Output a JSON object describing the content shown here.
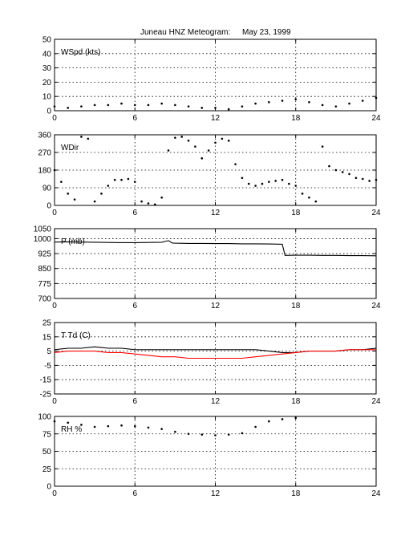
{
  "figure": {
    "title_station": "Juneau HNZ Meteogram:",
    "title_date": "May 23, 1999"
  },
  "chart_data": [
    {
      "type": "scatter",
      "label": "WSpd (kts)",
      "xlim": [
        0,
        24
      ],
      "ylim": [
        0,
        50
      ],
      "xticks": [
        0,
        6,
        12,
        18,
        24
      ],
      "yticks": [
        0,
        10,
        20,
        30,
        40,
        50
      ],
      "grid": true,
      "series": [
        {
          "color": "#000000",
          "x": [
            0,
            1,
            2,
            3,
            4,
            5,
            6,
            7,
            8,
            9,
            10,
            11,
            12,
            13,
            14,
            15,
            16,
            17,
            18,
            19,
            20,
            21,
            22,
            23,
            24
          ],
          "y": [
            3,
            2,
            3,
            4,
            4,
            5,
            4,
            4,
            5,
            4,
            3,
            2,
            2,
            1,
            3,
            5,
            6,
            7,
            8,
            6,
            4,
            3,
            5,
            7,
            9
          ]
        }
      ]
    },
    {
      "type": "scatter",
      "label": "WDir",
      "xlim": [
        0,
        24
      ],
      "ylim": [
        0,
        360
      ],
      "xticks": [
        0,
        6,
        12,
        18,
        24
      ],
      "yticks": [
        0,
        90,
        180,
        270,
        360
      ],
      "grid": true,
      "series": [
        {
          "color": "#000000",
          "x": [
            0,
            0.5,
            1,
            1.5,
            2,
            2.5,
            3,
            3.5,
            4,
            4.5,
            5,
            5.5,
            6,
            6.5,
            7,
            7.5,
            8,
            8.5,
            9,
            9.5,
            10,
            10.5,
            11,
            11.5,
            12,
            12.5,
            13,
            13.5,
            14,
            14.5,
            15,
            15.5,
            16,
            16.5,
            17,
            17.5,
            18,
            18.5,
            19,
            19.5,
            20,
            20.5,
            21,
            21.5,
            22,
            22.5,
            23,
            23.5,
            24
          ],
          "y": [
            180,
            120,
            60,
            30,
            350,
            340,
            20,
            60,
            100,
            130,
            130,
            135,
            120,
            20,
            10,
            5,
            40,
            280,
            345,
            350,
            330,
            300,
            240,
            280,
            320,
            340,
            330,
            210,
            140,
            110,
            100,
            110,
            120,
            125,
            130,
            110,
            100,
            60,
            40,
            20,
            300,
            200,
            180,
            170,
            160,
            140,
            135,
            125,
            130
          ]
        }
      ]
    },
    {
      "type": "line",
      "label": "P (mb)",
      "xlim": [
        0,
        24
      ],
      "ylim": [
        700,
        1050
      ],
      "xticks": [
        0,
        6,
        12,
        18,
        24
      ],
      "yticks": [
        700,
        775,
        850,
        925,
        1000,
        1050
      ],
      "grid": true,
      "series": [
        {
          "color": "#000000",
          "x": [
            0,
            1,
            2,
            3,
            4,
            5,
            6,
            7,
            8,
            8.5,
            8.8,
            9,
            10,
            11,
            12,
            13,
            14,
            15,
            16,
            17,
            17.2,
            18,
            19,
            20,
            21,
            22,
            23,
            24
          ],
          "y": [
            983,
            984,
            983,
            982,
            981,
            980,
            980,
            981,
            982,
            990,
            978,
            977,
            976,
            976,
            975,
            975,
            974,
            974,
            973,
            972,
            916,
            917,
            917,
            916,
            916,
            915,
            915,
            914
          ]
        }
      ]
    },
    {
      "type": "line",
      "label": "T Td (C)",
      "xlim": [
        0,
        24
      ],
      "ylim": [
        -25,
        25
      ],
      "xticks": [
        0,
        6,
        12,
        18,
        24
      ],
      "yticks": [
        -25,
        -15,
        -5,
        5,
        15,
        25
      ],
      "grid": true,
      "series": [
        {
          "color": "#000000",
          "x": [
            0,
            1,
            2,
            3,
            4,
            5,
            6,
            7,
            8,
            9,
            10,
            11,
            12,
            13,
            14,
            15,
            16,
            17,
            18,
            19,
            20,
            21,
            22,
            23,
            24
          ],
          "y": [
            6,
            7,
            7,
            8,
            7,
            7,
            6,
            6,
            6,
            6,
            6,
            6,
            6,
            6,
            6,
            6,
            5,
            4,
            4,
            5,
            5,
            5,
            6,
            6,
            7
          ]
        },
        {
          "color": "#ff0000",
          "x": [
            0,
            1,
            2,
            3,
            4,
            5,
            6,
            7,
            8,
            9,
            10,
            11,
            12,
            13,
            14,
            15,
            16,
            17,
            18,
            19,
            20,
            21,
            22,
            23,
            24
          ],
          "y": [
            4,
            5,
            5,
            5,
            4,
            4,
            3,
            2,
            1,
            1,
            0,
            0,
            0,
            0,
            0,
            1,
            2,
            3,
            4,
            5,
            5,
            5,
            6,
            6,
            6
          ]
        }
      ]
    },
    {
      "type": "scatter",
      "label": "RH %",
      "xlim": [
        0,
        24
      ],
      "ylim": [
        0,
        100
      ],
      "xticks": [
        0,
        6,
        12,
        18,
        24
      ],
      "yticks": [
        0,
        25,
        50,
        75,
        100
      ],
      "grid": true,
      "series": [
        {
          "color": "#000000",
          "x": [
            0,
            1,
            2,
            3,
            4,
            5,
            6,
            7,
            8,
            9,
            10,
            11,
            12,
            13,
            14,
            15,
            16,
            17,
            18
          ],
          "y": [
            93,
            91,
            88,
            85,
            86,
            87,
            86,
            84,
            82,
            78,
            75,
            74,
            73,
            74,
            76,
            85,
            93,
            96,
            98
          ]
        }
      ]
    }
  ]
}
